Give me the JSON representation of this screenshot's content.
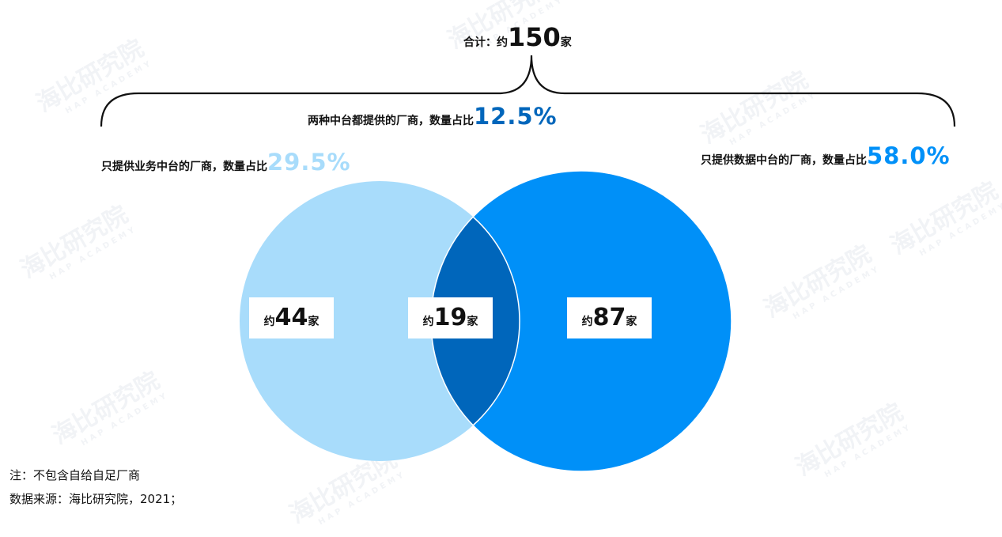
{
  "total": {
    "prefix": "合计：约",
    "value": "150",
    "unit": "家"
  },
  "groups": {
    "business_only": {
      "label": "只提供业务中台的厂商，数量占比",
      "percent": "29.5%",
      "count_prefix": "约",
      "count": "44",
      "count_unit": "家",
      "color": "#a8dcfb"
    },
    "both": {
      "label": "两种中台都提供的厂商，数量占比",
      "percent": "12.5%",
      "count_prefix": "约",
      "count": "19",
      "count_unit": "家",
      "color": "#0066bb"
    },
    "data_only": {
      "label": "只提供数据中台的厂商，数量占比",
      "percent": "58.0%",
      "count_prefix": "约",
      "count": "87",
      "count_unit": "家",
      "color": "#0090f8"
    }
  },
  "notes": {
    "note": "注：不包含自给自足厂商",
    "source": "数据来源：海比研究院，2021；"
  },
  "watermark": {
    "text": "海比研究院",
    "sub": "HAP ACADEMY"
  }
}
